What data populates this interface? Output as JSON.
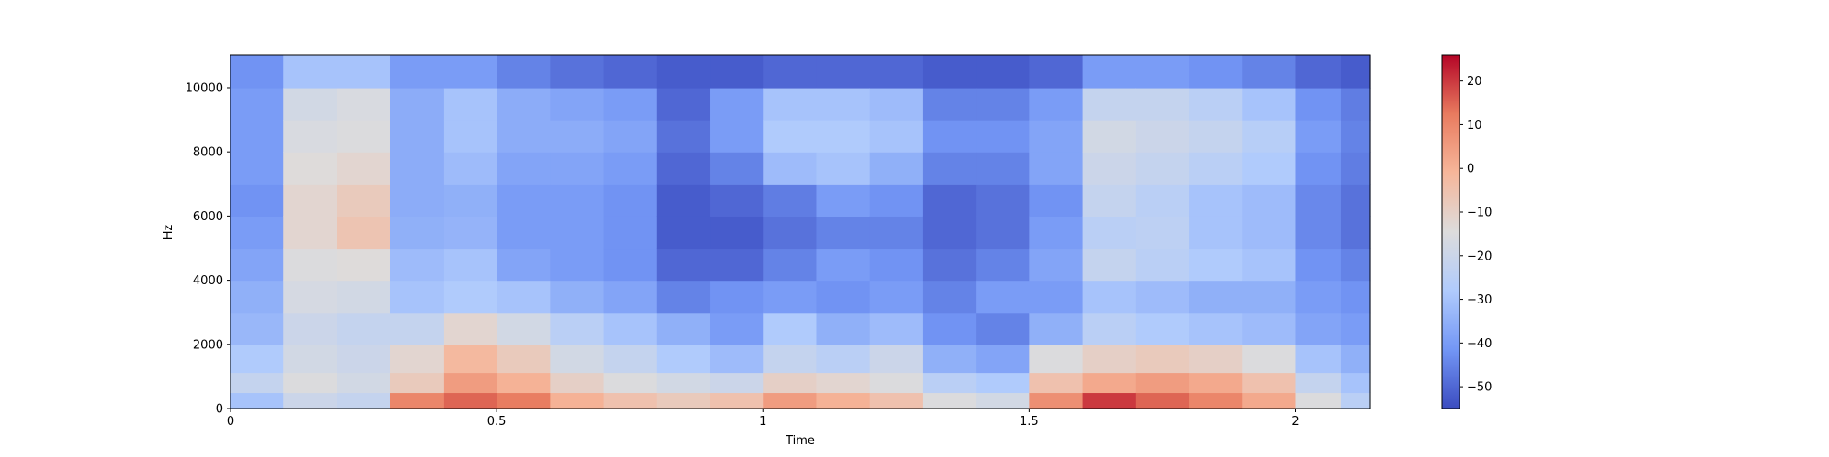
{
  "chart_data": {
    "type": "heatmap",
    "title": "",
    "xlabel": "Time",
    "ylabel": "Hz",
    "xlim": [
      0,
      2.14
    ],
    "ylim": [
      0,
      11025
    ],
    "x_ticks": [
      0,
      0.5,
      1,
      1.5,
      2
    ],
    "x_tick_labels": [
      "0",
      "0.5",
      "1",
      "1.5",
      "2"
    ],
    "y_ticks": [
      0,
      2000,
      4000,
      6000,
      8000,
      10000
    ],
    "y_tick_labels": [
      "0",
      "2000",
      "4000",
      "6000",
      "8000",
      "10000"
    ],
    "colorbar": {
      "range": [
        -55,
        26
      ],
      "ticks": [
        20,
        10,
        0,
        -10,
        -20,
        -30,
        -40,
        -50
      ],
      "tick_labels": [
        "20",
        "10",
        "0",
        "−10",
        "−20",
        "−30",
        "−40",
        "−50"
      ],
      "colormap": "coolwarm",
      "stops": [
        "#3b4cc0",
        "#7396f5",
        "#b0cbfc",
        "#dddcdc",
        "#f6b69a",
        "#e87b5f",
        "#b40426"
      ]
    },
    "time_bins": [
      0.05,
      0.15,
      0.25,
      0.35,
      0.45,
      0.55,
      0.65,
      0.75,
      0.85,
      0.95,
      1.05,
      1.15,
      1.25,
      1.35,
      1.45,
      1.55,
      1.65,
      1.75,
      1.85,
      1.95,
      2.05,
      2.12
    ],
    "freq_bins": [
      250,
      750,
      1500,
      2500,
      3500,
      4500,
      5500,
      6500,
      7500,
      8500,
      9500,
      10500
    ],
    "levels_db": [
      [
        -30,
        -22,
        -28,
        -33,
        -35,
        -38,
        -40,
        -42,
        -40,
        -40,
        -40,
        -42
      ],
      [
        -20,
        -15,
        -18,
        -20,
        -17,
        -15,
        -12,
        -12,
        -14,
        -16,
        -18,
        -30
      ],
      [
        -22,
        -18,
        -20,
        -22,
        -18,
        -14,
        -6,
        -8,
        -12,
        -15,
        -16,
        -30
      ],
      [
        10,
        -8,
        -12,
        -22,
        -30,
        -32,
        -35,
        -36,
        -36,
        -36,
        -36,
        -40
      ],
      [
        15,
        5,
        -2,
        -12,
        -28,
        -30,
        -34,
        -35,
        -32,
        -30,
        -30,
        -40
      ],
      [
        12,
        0,
        -8,
        -18,
        -30,
        -38,
        -40,
        -40,
        -38,
        -36,
        -36,
        -45
      ],
      [
        0,
        -10,
        -18,
        -25,
        -35,
        -40,
        -40,
        -40,
        -38,
        -36,
        -38,
        -48
      ],
      [
        -5,
        -15,
        -22,
        -30,
        -38,
        -42,
        -42,
        -42,
        -40,
        -38,
        -40,
        -50
      ],
      [
        -8,
        -18,
        -28,
        -35,
        -45,
        -50,
        -52,
        -52,
        -50,
        -48,
        -50,
        -52
      ],
      [
        -5,
        -20,
        -32,
        -40,
        -42,
        -50,
        -52,
        -50,
        -45,
        -40,
        -40,
        -52
      ],
      [
        5,
        -10,
        -22,
        -28,
        -40,
        -45,
        -48,
        -46,
        -32,
        -28,
        -30,
        -50
      ],
      [
        0,
        -12,
        -25,
        -35,
        -42,
        -40,
        -45,
        -40,
        -30,
        -28,
        -30,
        -50
      ],
      [
        -5,
        -15,
        -20,
        -32,
        -40,
        -42,
        -45,
        -42,
        -35,
        -30,
        -32,
        -50
      ],
      [
        -15,
        -25,
        -35,
        -42,
        -45,
        -48,
        -50,
        -50,
        -45,
        -42,
        -45,
        -52
      ],
      [
        -18,
        -28,
        -38,
        -45,
        -40,
        -45,
        -48,
        -48,
        -45,
        -42,
        -45,
        -52
      ],
      [
        8,
        -5,
        -15,
        -35,
        -40,
        -38,
        -40,
        -42,
        -38,
        -38,
        -40,
        -50
      ],
      [
        20,
        2,
        -10,
        -25,
        -30,
        -22,
        -25,
        -22,
        -20,
        -18,
        -22,
        -40
      ],
      [
        15,
        5,
        -8,
        -28,
        -32,
        -25,
        -24,
        -25,
        -22,
        -20,
        -22,
        -40
      ],
      [
        10,
        2,
        -10,
        -30,
        -35,
        -28,
        -30,
        -30,
        -25,
        -22,
        -25,
        -42
      ],
      [
        2,
        -5,
        -15,
        -32,
        -35,
        -30,
        -32,
        -32,
        -28,
        -26,
        -30,
        -45
      ],
      [
        -15,
        -22,
        -30,
        -38,
        -40,
        -42,
        -44,
        -44,
        -42,
        -40,
        -42,
        -50
      ],
      [
        -25,
        -30,
        -35,
        -40,
        -42,
        -45,
        -48,
        -48,
        -46,
        -45,
        -46,
        -52
      ]
    ]
  }
}
